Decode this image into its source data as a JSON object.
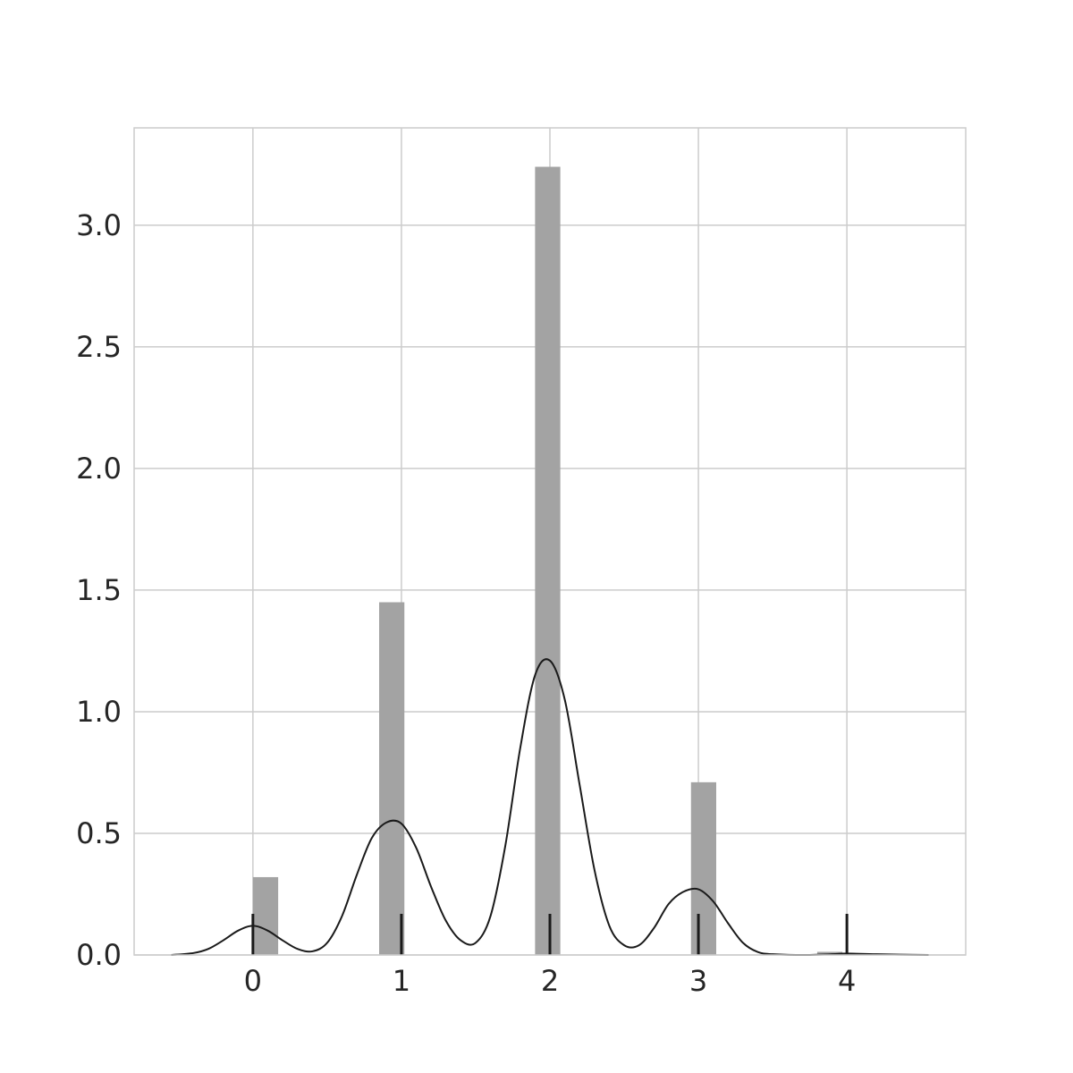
{
  "chart_data": {
    "type": "bar",
    "title": "",
    "xlabel": "",
    "ylabel": "",
    "xlim": [
      -0.8,
      4.8
    ],
    "ylim": [
      0,
      3.4
    ],
    "xticks": [
      0,
      1,
      2,
      3,
      4
    ],
    "xtick_labels": [
      "0",
      "1",
      "2",
      "3",
      "4"
    ],
    "yticks": [
      0.0,
      0.5,
      1.0,
      1.5,
      2.0,
      2.5,
      3.0
    ],
    "ytick_labels": [
      "0.0",
      "0.5",
      "1.0",
      "1.5",
      "2.0",
      "2.5",
      "3.0"
    ],
    "grid": true,
    "histogram": {
      "bin_width": 0.17,
      "bins": [
        {
          "left": 0.0,
          "value": 0.32
        },
        {
          "left": 0.17,
          "value": 0.0
        },
        {
          "left": 0.34,
          "value": 0.0
        },
        {
          "left": 0.51,
          "value": 0.0
        },
        {
          "left": 0.68,
          "value": 0.0
        },
        {
          "left": 0.85,
          "value": 1.45
        },
        {
          "left": 1.02,
          "value": 0.0
        },
        {
          "left": 1.19,
          "value": 0.0
        },
        {
          "left": 1.36,
          "value": 0.0
        },
        {
          "left": 1.53,
          "value": 0.0
        },
        {
          "left": 1.7,
          "value": 0.0
        },
        {
          "left": 1.9,
          "value": 3.24
        },
        {
          "left": 2.07,
          "value": 0.0
        },
        {
          "left": 2.24,
          "value": 0.0
        },
        {
          "left": 2.41,
          "value": 0.0
        },
        {
          "left": 2.58,
          "value": 0.0
        },
        {
          "left": 2.75,
          "value": 0.0
        },
        {
          "left": 2.95,
          "value": 0.71
        },
        {
          "left": 3.12,
          "value": 0.0
        },
        {
          "left": 3.29,
          "value": 0.0
        },
        {
          "left": 3.46,
          "value": 0.0
        },
        {
          "left": 3.63,
          "value": 0.0
        },
        {
          "left": 3.8,
          "value": 0.013
        }
      ]
    },
    "kde": {
      "x": [
        -0.55,
        -0.4,
        -0.3,
        -0.2,
        -0.1,
        0.0,
        0.1,
        0.2,
        0.3,
        0.4,
        0.5,
        0.6,
        0.7,
        0.8,
        0.9,
        1.0,
        1.1,
        1.2,
        1.3,
        1.4,
        1.5,
        1.6,
        1.7,
        1.8,
        1.9,
        2.0,
        2.1,
        2.2,
        2.3,
        2.4,
        2.5,
        2.6,
        2.7,
        2.8,
        2.9,
        3.0,
        3.1,
        3.2,
        3.3,
        3.4,
        3.5,
        3.7,
        3.9,
        4.0,
        4.2,
        4.55
      ],
      "y": [
        0.0,
        0.008,
        0.025,
        0.06,
        0.1,
        0.12,
        0.1,
        0.06,
        0.025,
        0.015,
        0.05,
        0.16,
        0.33,
        0.48,
        0.545,
        0.54,
        0.44,
        0.28,
        0.14,
        0.06,
        0.05,
        0.16,
        0.45,
        0.85,
        1.15,
        1.21,
        1.05,
        0.7,
        0.35,
        0.12,
        0.04,
        0.04,
        0.11,
        0.21,
        0.26,
        0.27,
        0.22,
        0.13,
        0.05,
        0.012,
        0.003,
        0.0,
        0.003,
        0.006,
        0.003,
        0.0
      ]
    },
    "rug": [
      0,
      1,
      2,
      3,
      4
    ]
  }
}
